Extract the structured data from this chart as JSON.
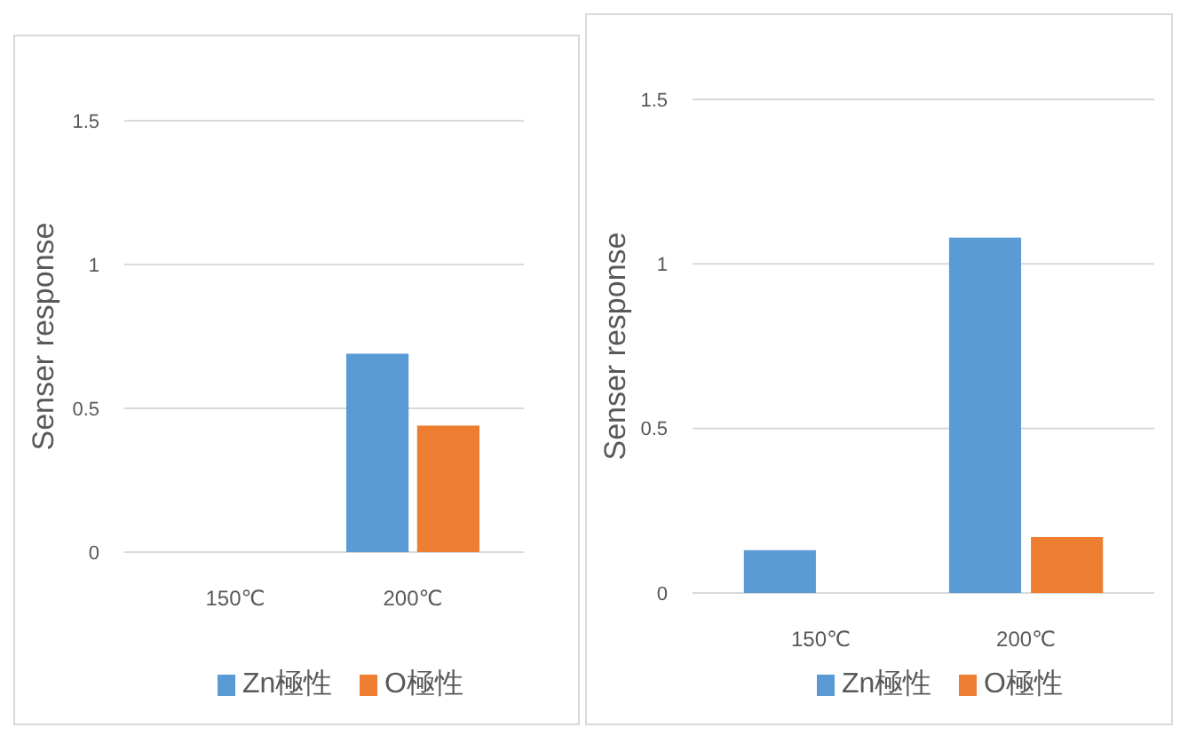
{
  "chart_data": [
    {
      "type": "bar",
      "ylabel": "Senser response",
      "categories": [
        "150℃",
        "200℃"
      ],
      "series": [
        {
          "name": "Zn極性",
          "color": "#5b9bd5",
          "values": [
            null,
            0.69
          ]
        },
        {
          "name": "O極性",
          "color": "#ed7d31",
          "values": [
            null,
            0.44
          ]
        }
      ],
      "ylim": [
        0,
        1.5
      ],
      "yticks": [
        0,
        0.5,
        1,
        1.5
      ],
      "grid": "y",
      "legend": "bottom"
    },
    {
      "type": "bar",
      "ylabel": "Senser response",
      "categories": [
        "150℃",
        "200℃"
      ],
      "series": [
        {
          "name": "Zn極性",
          "color": "#5b9bd5",
          "values": [
            0.13,
            1.08
          ]
        },
        {
          "name": "O極性",
          "color": "#ed7d31",
          "values": [
            null,
            0.17
          ]
        }
      ],
      "ylim": [
        0,
        1.5
      ],
      "yticks": [
        0,
        0.5,
        1,
        1.5
      ],
      "grid": "y",
      "legend": "bottom"
    }
  ]
}
